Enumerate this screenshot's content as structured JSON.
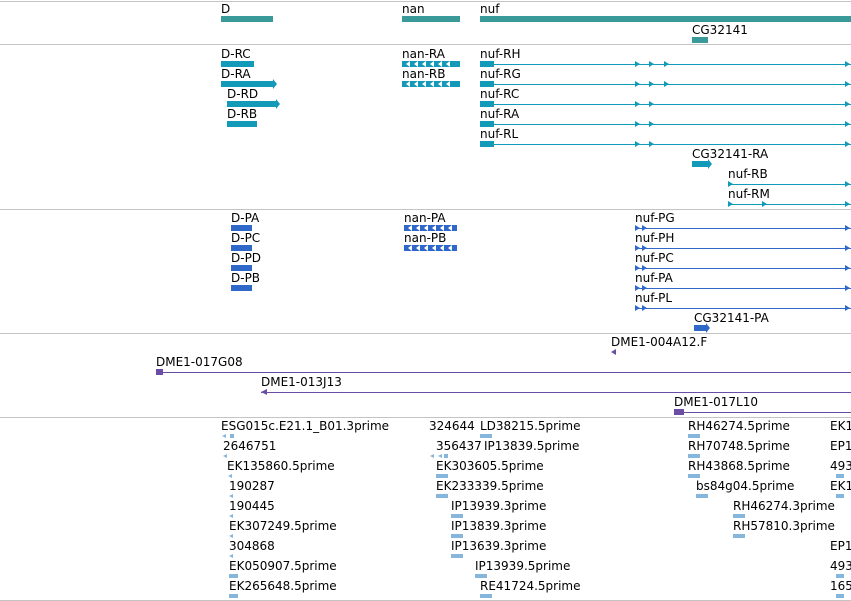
{
  "colors": {
    "gene": "#3a9a9a",
    "transcript": "#139ab8",
    "peptide": "#2f68c8",
    "clone": "#6a4ea6",
    "est": "#86b6dc",
    "divider": "#c4c4c4"
  },
  "genes": {
    "d": "D",
    "nan": "nan",
    "nuf": "nuf",
    "cg32141": "CG32141"
  },
  "transcripts": {
    "d_rc": "D-RC",
    "d_ra": "D-RA",
    "d_rd": "D-RD",
    "d_rb": "D-RB",
    "nan_ra": "nan-RA",
    "nan_rb": "nan-RB",
    "nuf_rh": "nuf-RH",
    "nuf_rg": "nuf-RG",
    "nuf_rc": "nuf-RC",
    "nuf_ra": "nuf-RA",
    "nuf_rl": "nuf-RL",
    "cg32141_ra": "CG32141-RA",
    "nuf_rb": "nuf-RB",
    "nuf_rm": "nuf-RM"
  },
  "peptides": {
    "d_pa": "D-PA",
    "d_pc": "D-PC",
    "d_pd": "D-PD",
    "d_pb": "D-PB",
    "nan_pa": "nan-PA",
    "nan_pb": "nan-PB",
    "nuf_pg": "nuf-PG",
    "nuf_ph": "nuf-PH",
    "nuf_pc": "nuf-PC",
    "nuf_pa": "nuf-PA",
    "nuf_pl": "nuf-PL",
    "cg32141_pa": "CG32141-PA"
  },
  "clones": {
    "c1": "DME1-004A12.F",
    "c2": "DME1-017G08",
    "c3": "DME1-013J13",
    "c4": "DME1-017L10"
  },
  "ests": {
    "e1": "ESG015c.E21.1_B01.3prime",
    "e2": "2646751",
    "e3": "EK135860.5prime",
    "e4": "190287",
    "e5": "190445",
    "e6": "EK307249.5prime",
    "e7": "304868",
    "e8": "EK050907.5prime",
    "e9": "EK265648.5prime",
    "e10": "324644",
    "e11": "356437",
    "e12": "LD38215.5prime",
    "e13": "IP13839.5prime",
    "e14": "EK303605.5prime",
    "e15": "EK233339.5prime",
    "e16": "IP13939.3prime",
    "e17": "IP13839.3prime",
    "e18": "IP13639.3prime",
    "e19": "IP13939.5prime",
    "e20": "RE41724.5prime",
    "e21": "RH46274.5prime",
    "e22": "RH70748.5prime",
    "e23": "RH43868.5prime",
    "e24": "bs84g04.5prime",
    "e25": "RH46274.3prime",
    "e26": "RH57810.3prime",
    "e27": "EK1",
    "e28": "EP1",
    "e29": "493",
    "e30": "EK1",
    "e31": "EP1",
    "e32": "493",
    "e33": "165"
  }
}
